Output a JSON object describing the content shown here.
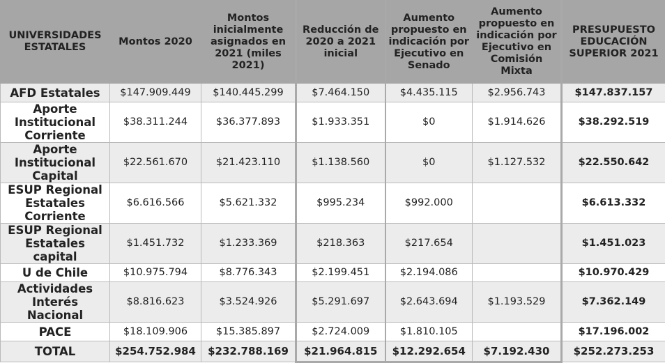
{
  "headers": [
    "UNIVERSIDADES ESTATALES",
    "Montos 2020",
    "Montos inicialmente asignados  en 2021 (miles 2021)",
    "Reducción de 2020 a 2021 inicial",
    "Aumento propuesto en indicación por Ejecutivo en Senado",
    "Aumento propuesto en indicación por Ejecutivo en Comisión Mixta",
    "PRESUPUESTO EDUCACIÓN SUPERIOR 2021"
  ],
  "rows": [
    {
      "label": "AFD Estatales",
      "montos_2020": "$147.909.449",
      "montos_2021": "$140.445.299",
      "reduccion": "$7.464.150",
      "aumento_senado": "$4.435.115",
      "aumento_mixta": "$2.956.743",
      "presupuesto": "$147.837.157"
    },
    {
      "label": "Aporte Institucional Corriente",
      "montos_2020": "$38.311.244",
      "montos_2021": "$36.377.893",
      "reduccion": "$1.933.351",
      "aumento_senado": "$0",
      "aumento_mixta": "$1.914.626",
      "presupuesto": "$38.292.519"
    },
    {
      "label": "Aporte Institucional Capital",
      "montos_2020": "$22.561.670",
      "montos_2021": "$21.423.110",
      "reduccion": "$1.138.560",
      "aumento_senado": "$0",
      "aumento_mixta": "$1.127.532",
      "presupuesto": "$22.550.642"
    },
    {
      "label": "ESUP Regional Estatales Corriente",
      "montos_2020": "$6.616.566",
      "montos_2021": "$5.621.332",
      "reduccion": "$995.234",
      "aumento_senado": "$992.000",
      "aumento_mixta": "",
      "presupuesto": "$6.613.332"
    },
    {
      "label": "ESUP Regional Estatales capital",
      "montos_2020": "$1.451.732",
      "montos_2021": "$1.233.369",
      "reduccion": "$218.363",
      "aumento_senado": "$217.654",
      "aumento_mixta": "",
      "presupuesto": "$1.451.023"
    },
    {
      "label": "U de Chile",
      "montos_2020": "$10.975.794",
      "montos_2021": "$8.776.343",
      "reduccion": "$2.199.451",
      "aumento_senado": "$2.194.086",
      "aumento_mixta": "",
      "presupuesto": "$10.970.429"
    },
    {
      "label": "Actividades Interés Nacional",
      "montos_2020": "$8.816.623",
      "montos_2021": "$3.524.926",
      "reduccion": "$5.291.697",
      "aumento_senado": "$2.643.694",
      "aumento_mixta": "$1.193.529",
      "presupuesto": "$7.362.149"
    },
    {
      "label": "PACE",
      "montos_2020": "$18.109.906",
      "montos_2021": "$15.385.897",
      "reduccion": "$2.724.009",
      "aumento_senado": "$1.810.105",
      "aumento_mixta": "",
      "presupuesto": "$17.196.002"
    }
  ],
  "total": {
    "label": "TOTAL",
    "montos_2020": "$254.752.984",
    "montos_2021": "$232.788.169",
    "reduccion": "$21.964.815",
    "aumento_senado": "$12.292.654",
    "aumento_mixta": "$7.192.430",
    "presupuesto": "$252.273.253"
  },
  "colors": {
    "header_bg": "#a6a6a6",
    "row_alt_bg": "#ececec",
    "row_bg": "#ffffff",
    "separator": "#a9a9a9"
  }
}
